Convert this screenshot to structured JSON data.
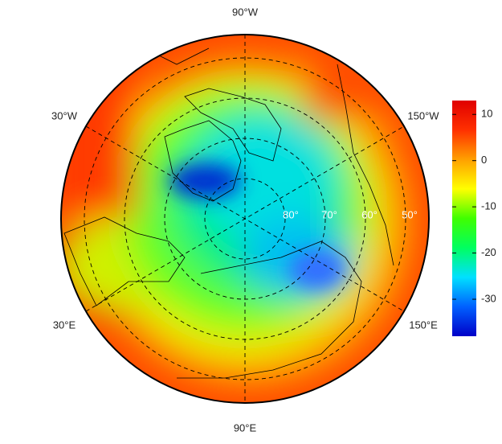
{
  "map": {
    "longitude_labels": [
      "90°W",
      "30°W",
      "150°W",
      "30°E",
      "150°E",
      "90°E"
    ],
    "latitude_labels": [
      "80°",
      "70°",
      "60°",
      "50°"
    ],
    "colorbar": {
      "limits": [
        -38,
        13
      ],
      "ticks": [
        10,
        0,
        -10,
        -20,
        -30
      ],
      "colors": [
        "#0000c8",
        "#0060ff",
        "#00e0ff",
        "#00ff60",
        "#40ff00",
        "#ffff00",
        "#ffa000",
        "#ff3000",
        "#e00000"
      ]
    }
  }
}
